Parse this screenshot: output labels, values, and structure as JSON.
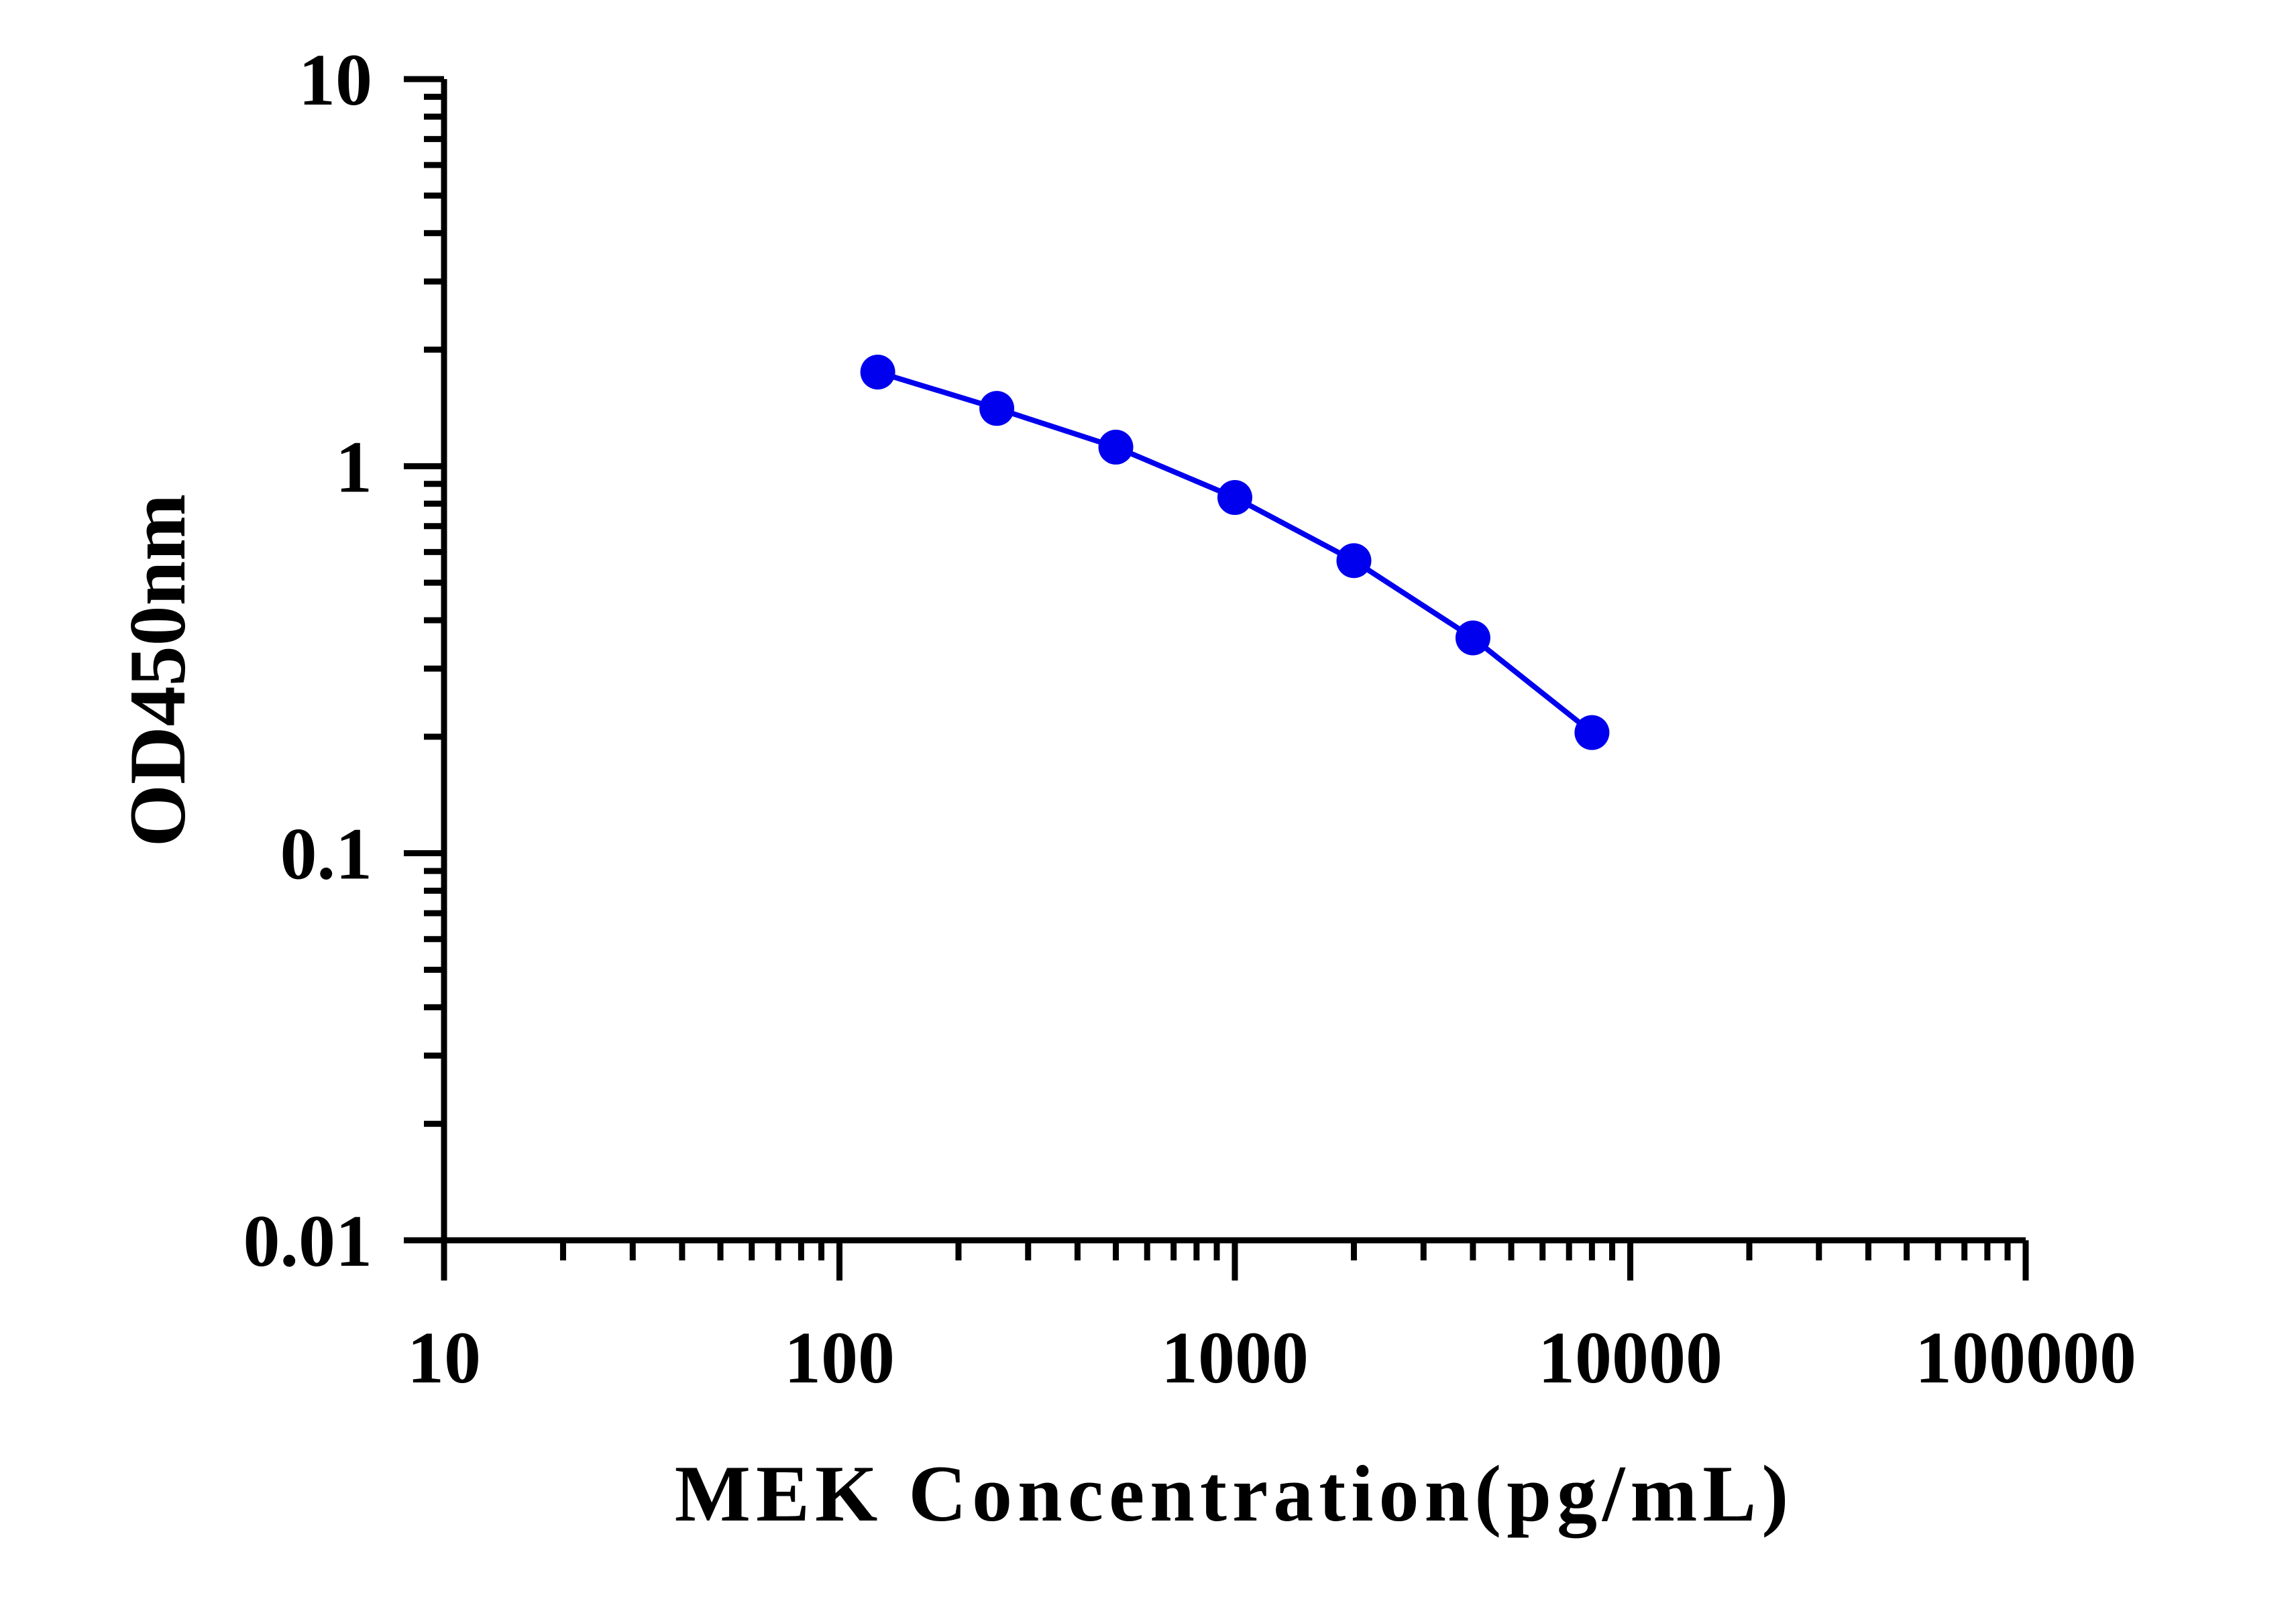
{
  "chart_data": {
    "type": "line",
    "xlabel": "MEK Concentration(pg/mL)",
    "ylabel": "OD450nm",
    "x_scale": "log",
    "y_scale": "log",
    "xlim": [
      10,
      100000
    ],
    "ylim": [
      0.01,
      10
    ],
    "x_ticks": [
      "10",
      "100",
      "1000",
      "10000",
      "100000"
    ],
    "y_ticks": [
      "0.01",
      "0.1",
      "1",
      "10"
    ],
    "grid": false,
    "series": [
      {
        "color": "#0000ee",
        "marker": "circle",
        "x": [
          125,
          250,
          500,
          1000,
          2000,
          4000,
          8000
        ],
        "y": [
          1.75,
          1.41,
          1.12,
          0.83,
          0.57,
          0.36,
          0.205
        ]
      }
    ]
  }
}
